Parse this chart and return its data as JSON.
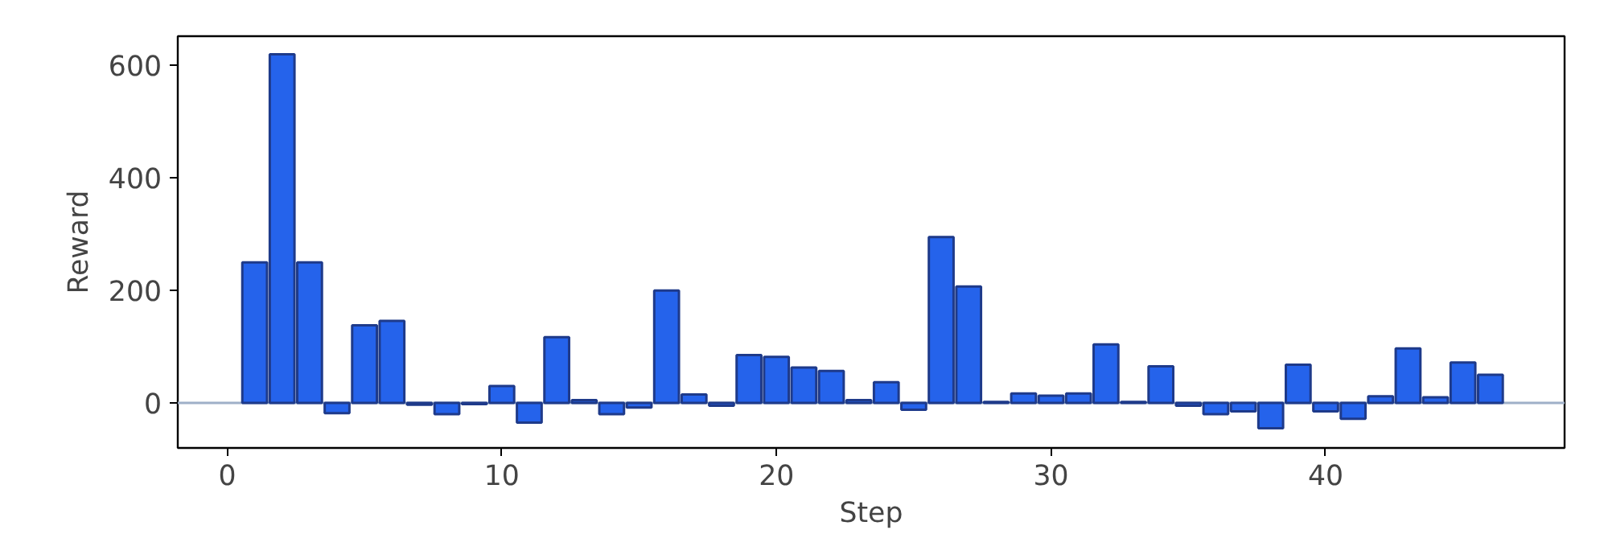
{
  "chart_data": {
    "type": "bar",
    "xlabel": "Step",
    "ylabel": "Reward",
    "x": [
      1,
      2,
      3,
      4,
      5,
      6,
      7,
      8,
      9,
      10,
      11,
      12,
      13,
      14,
      15,
      16,
      17,
      18,
      19,
      20,
      21,
      22,
      23,
      24,
      25,
      26,
      27,
      28,
      29,
      30,
      31,
      32,
      33,
      34,
      35,
      36,
      37,
      38,
      39,
      40,
      41,
      42,
      43,
      44,
      45,
      46
    ],
    "values": [
      250,
      620,
      250,
      -18,
      138,
      146,
      -3,
      -20,
      -2,
      30,
      -35,
      117,
      5,
      -20,
      -8,
      200,
      15,
      -5,
      85,
      82,
      63,
      57,
      5,
      37,
      -12,
      295,
      207,
      2,
      17,
      13,
      17,
      104,
      2,
      65,
      -5,
      -20,
      -15,
      -45,
      68,
      -15,
      -28,
      12,
      97,
      10,
      72,
      50
    ],
    "color": "#2563eb",
    "xlim": [
      -1.8,
      48.7
    ],
    "xticks": [
      0,
      10,
      20,
      30,
      40
    ],
    "ylim": [
      -80,
      652
    ],
    "yticks": [
      0,
      200,
      400,
      600
    ],
    "ref_lines": [
      {
        "axis": "y",
        "value": 0,
        "color": "#9fb0c8"
      }
    ],
    "grid": false
  }
}
